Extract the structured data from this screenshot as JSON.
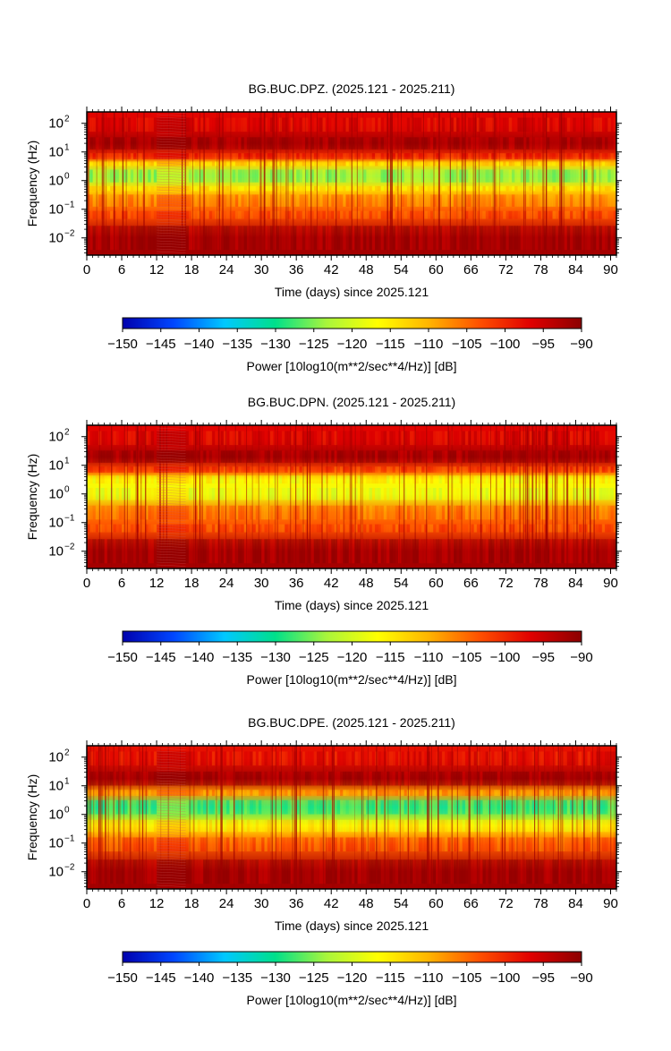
{
  "colors": {
    "colorbar_stops": [
      "#0000ad",
      "#0046ff",
      "#00c8ff",
      "#00e08a",
      "#a8f53c",
      "#ffff00",
      "#ffb400",
      "#ff5000",
      "#e00000",
      "#8b0000"
    ],
    "background": "#ffffff"
  },
  "chart_data": [
    {
      "type": "heatmap",
      "title": "BG.BUC.DPZ. (2025.121 - 2025.211)",
      "xlabel": "Time (days) since 2025.121",
      "ylabel": "Frequency (Hz)",
      "xlim": [
        0,
        91
      ],
      "ylim": [
        0.0025,
        250
      ],
      "y_scale": "log",
      "x_ticks": [
        "0",
        "6",
        "12",
        "18",
        "24",
        "30",
        "36",
        "42",
        "48",
        "54",
        "60",
        "66",
        "72",
        "78",
        "84",
        "90"
      ],
      "y_ticks": [
        {
          "base": "10",
          "exp": "2"
        },
        {
          "base": "10",
          "exp": "1"
        },
        {
          "base": "10",
          "exp": "0"
        },
        {
          "base": "10",
          "exp": "−1"
        },
        {
          "base": "10",
          "exp": "−2"
        }
      ],
      "colorbar": {
        "label": "Power [10log10(m**2/sec**4/Hz)] [dB]",
        "ticks": [
          "−150",
          "−145",
          "−140",
          "−135",
          "−130",
          "−125",
          "−120",
          "−115",
          "−110",
          "−105",
          "−100",
          "−95",
          "−90"
        ],
        "range": [
          -150,
          -90
        ]
      },
      "bands": [
        {
          "freq_hz": [
            40,
            200
          ],
          "power_db": -97
        },
        {
          "freq_hz": [
            10,
            40
          ],
          "power_db": -92
        },
        {
          "freq_hz": [
            5,
            10
          ],
          "power_db": -100
        },
        {
          "freq_hz": [
            3,
            5
          ],
          "power_db": -113
        },
        {
          "freq_hz": [
            0.7,
            3
          ],
          "power_db": -124
        },
        {
          "freq_hz": [
            0.4,
            0.7
          ],
          "power_db": -114
        },
        {
          "freq_hz": [
            0.1,
            0.4
          ],
          "power_db": -107
        },
        {
          "freq_hz": [
            0.04,
            0.1
          ],
          "power_db": -103
        },
        {
          "freq_hz": [
            0.0025,
            0.04
          ],
          "power_db": -92
        }
      ],
      "data_gap_days": [
        12,
        17
      ]
    },
    {
      "type": "heatmap",
      "title": "BG.BUC.DPN. (2025.121 - 2025.211)",
      "xlabel": "Time (days) since 2025.121",
      "ylabel": "Frequency (Hz)",
      "xlim": [
        0,
        91
      ],
      "ylim": [
        0.0025,
        250
      ],
      "y_scale": "log",
      "x_ticks": [
        "0",
        "6",
        "12",
        "18",
        "24",
        "30",
        "36",
        "42",
        "48",
        "54",
        "60",
        "66",
        "72",
        "78",
        "84",
        "90"
      ],
      "y_ticks": [
        {
          "base": "10",
          "exp": "2"
        },
        {
          "base": "10",
          "exp": "1"
        },
        {
          "base": "10",
          "exp": "0"
        },
        {
          "base": "10",
          "exp": "−1"
        },
        {
          "base": "10",
          "exp": "−2"
        }
      ],
      "colorbar": {
        "label": "Power [10log10(m**2/sec**4/Hz)] [dB]",
        "ticks": [
          "−150",
          "−145",
          "−140",
          "−135",
          "−130",
          "−125",
          "−120",
          "−115",
          "−110",
          "−105",
          "−100",
          "−95",
          "−90"
        ],
        "range": [
          -150,
          -90
        ]
      },
      "bands": [
        {
          "freq_hz": [
            40,
            200
          ],
          "power_db": -97
        },
        {
          "freq_hz": [
            10,
            40
          ],
          "power_db": -92
        },
        {
          "freq_hz": [
            5,
            10
          ],
          "power_db": -102
        },
        {
          "freq_hz": [
            2,
            5
          ],
          "power_db": -116
        },
        {
          "freq_hz": [
            0.5,
            2
          ],
          "power_db": -118
        },
        {
          "freq_hz": [
            0.1,
            0.5
          ],
          "power_db": -106
        },
        {
          "freq_hz": [
            0.04,
            0.1
          ],
          "power_db": -103
        },
        {
          "freq_hz": [
            0.0025,
            0.04
          ],
          "power_db": -92
        }
      ],
      "data_gap_days": [
        12,
        17
      ]
    },
    {
      "type": "heatmap",
      "title": "BG.BUC.DPE. (2025.121 - 2025.211)",
      "xlabel": "Time (days) since 2025.121",
      "ylabel": "Frequency (Hz)",
      "xlim": [
        0,
        91
      ],
      "ylim": [
        0.0025,
        250
      ],
      "y_scale": "log",
      "x_ticks": [
        "0",
        "6",
        "12",
        "18",
        "24",
        "30",
        "36",
        "42",
        "48",
        "54",
        "60",
        "66",
        "72",
        "78",
        "84",
        "90"
      ],
      "y_ticks": [
        {
          "base": "10",
          "exp": "2"
        },
        {
          "base": "10",
          "exp": "1"
        },
        {
          "base": "10",
          "exp": "0"
        },
        {
          "base": "10",
          "exp": "−1"
        },
        {
          "base": "10",
          "exp": "−2"
        }
      ],
      "colorbar": {
        "label": "Power [10log10(m**2/sec**4/Hz)] [dB]",
        "ticks": [
          "−150",
          "−145",
          "−140",
          "−135",
          "−130",
          "−125",
          "−120",
          "−115",
          "−110",
          "−105",
          "−100",
          "−95",
          "−90"
        ],
        "range": [
          -150,
          -90
        ]
      },
      "bands": [
        {
          "freq_hz": [
            40,
            200
          ],
          "power_db": -98
        },
        {
          "freq_hz": [
            8,
            40
          ],
          "power_db": -92
        },
        {
          "freq_hz": [
            4,
            8
          ],
          "power_db": -108
        },
        {
          "freq_hz": [
            0.8,
            4
          ],
          "power_db": -128
        },
        {
          "freq_hz": [
            0.2,
            0.8
          ],
          "power_db": -115
        },
        {
          "freq_hz": [
            0.04,
            0.2
          ],
          "power_db": -104
        },
        {
          "freq_hz": [
            0.0025,
            0.04
          ],
          "power_db": -92
        }
      ],
      "data_gap_days": [
        12,
        17
      ]
    }
  ]
}
